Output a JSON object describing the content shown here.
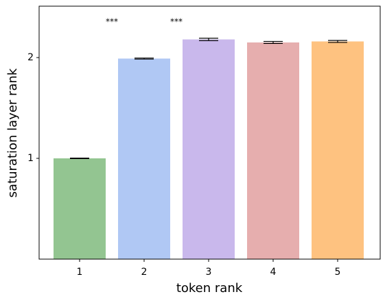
{
  "chart_data": {
    "type": "bar",
    "xlabel": "token rank",
    "ylabel": "saturation layer rank",
    "categories": [
      "1",
      "2",
      "3",
      "4",
      "5"
    ],
    "values": [
      1.0,
      1.99,
      2.18,
      2.15,
      2.16
    ],
    "errors": [
      0.003,
      0.005,
      0.012,
      0.01,
      0.01
    ],
    "colors": [
      "#93c591",
      "#b0c8f4",
      "#c9b8ec",
      "#e6aeae",
      "#fec280"
    ],
    "annotations": [
      "***",
      "***"
    ],
    "ylim": [
      0,
      2.51
    ],
    "yticks": [
      1,
      2
    ]
  }
}
